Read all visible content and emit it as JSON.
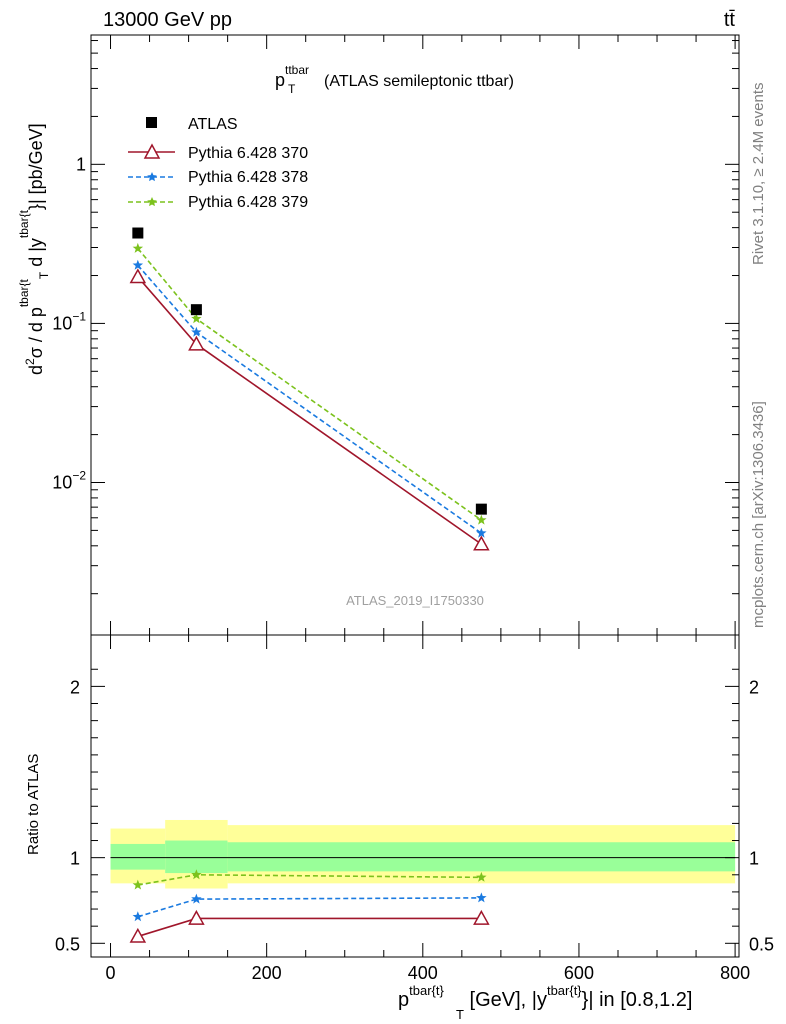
{
  "header": {
    "left": "13000 GeV pp",
    "right": "tt̄"
  },
  "side_labels": {
    "rivet": "Rivet 3.1.10, ≥ 2.4M events",
    "mcplots": "mcplots.cern.ch [arXiv:1306.3436]"
  },
  "colors": {
    "atlas": "#000000",
    "py370": "#a0162b",
    "py378": "#1a7ae0",
    "py379": "#7cc21d",
    "band_inner": "#99ff99",
    "band_outer": "#ffff99"
  },
  "chart_data": [
    {
      "type": "line",
      "title_main": "p",
      "title_sup": "ttbar",
      "title_sub": "T",
      "title_rest": "(ATLAS semileptonic ttbar)",
      "watermark": "ATLAS_2019_I1750330",
      "ylabel": {
        "part1": "d",
        "sup1": "2",
        "part2": "σ / d p",
        "sup2": "tbar{t",
        "sub2": "T",
        "part3": " d |y",
        "sup3": "tbar{t",
        "part4": "}| [pb/GeV]"
      },
      "yscale": "log",
      "ylim": [
        0.0011,
        6.5
      ],
      "xlim": [
        -25,
        805
      ],
      "yticks_labeled": [
        {
          "value": 1,
          "base": "1",
          "exp": ""
        },
        {
          "value": 0.1,
          "base": "10",
          "exp": "−1"
        },
        {
          "value": 0.01,
          "base": "10",
          "exp": "−2"
        }
      ],
      "legend_position": "top-left",
      "series": [
        {
          "name": "ATLAS",
          "marker": "square",
          "x": [
            35,
            110,
            475
          ],
          "y": [
            0.37,
            0.122,
            0.0068
          ]
        },
        {
          "name": "Pythia 6.428 370",
          "marker": "triangle",
          "line": "solid",
          "x": [
            35,
            110,
            475
          ],
          "y": [
            0.196,
            0.074,
            0.0041
          ]
        },
        {
          "name": "Pythia 6.428 378",
          "marker": "star",
          "line": "dashed",
          "x": [
            35,
            110,
            475
          ],
          "y": [
            0.232,
            0.088,
            0.0048
          ]
        },
        {
          "name": "Pythia 6.428 379",
          "marker": "star",
          "line": "dashed",
          "x": [
            35,
            110,
            475
          ],
          "y": [
            0.296,
            0.107,
            0.0058
          ]
        }
      ]
    },
    {
      "type": "line",
      "ylabel": "Ratio to ATLAS",
      "xlabel": {
        "part1": "p",
        "sup1": "tbar{t}",
        "sub1": "T",
        "part2": " [GeV], |y",
        "sup2": "tbar{t}",
        "part3": "}| in [0.8,1.2]"
      },
      "ylim": [
        0.42,
        2.3
      ],
      "xlim": [
        -25,
        805
      ],
      "yticks_labeled": [
        0.5,
        1,
        2
      ],
      "xticks": [
        0,
        200,
        400,
        600,
        800
      ],
      "reference_line": 1,
      "bands": [
        {
          "x0": 0,
          "x1": 70,
          "inner": [
            0.93,
            1.08
          ],
          "outer": [
            0.85,
            1.17
          ]
        },
        {
          "x0": 70,
          "x1": 150,
          "inner": [
            0.91,
            1.1
          ],
          "outer": [
            0.82,
            1.22
          ]
        },
        {
          "x0": 150,
          "x1": 800,
          "inner": [
            0.92,
            1.09
          ],
          "outer": [
            0.85,
            1.19
          ]
        }
      ],
      "series": [
        {
          "name": "Pythia 6.428 370",
          "x": [
            35,
            110,
            475
          ],
          "y": [
            0.54,
            0.645,
            0.645
          ]
        },
        {
          "name": "Pythia 6.428 378",
          "x": [
            35,
            110,
            475
          ],
          "y": [
            0.655,
            0.758,
            0.765
          ]
        },
        {
          "name": "Pythia 6.428 379",
          "x": [
            35,
            110,
            475
          ],
          "y": [
            0.84,
            0.9,
            0.885
          ]
        }
      ]
    }
  ]
}
